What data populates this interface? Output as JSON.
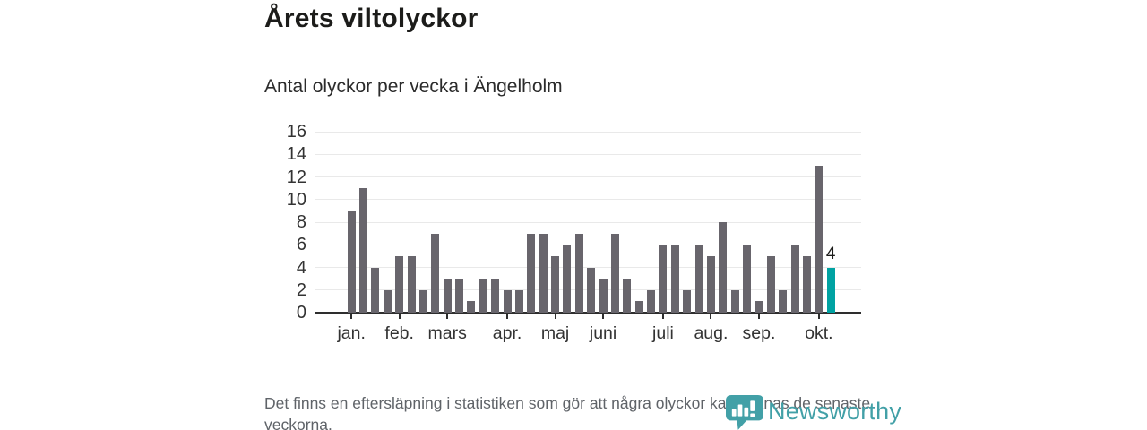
{
  "header": {
    "title": "Årets viltolyckor",
    "subtitle": "Antal olyckor per vecka i Ängelholm"
  },
  "chart_data": {
    "type": "bar",
    "title": "Årets viltolyckor",
    "subtitle": "Antal olyckor per vecka i Ängelholm",
    "x_unit": "week",
    "values": [
      9,
      11,
      4,
      2,
      5,
      5,
      2,
      7,
      3,
      3,
      1,
      3,
      3,
      2,
      2,
      7,
      7,
      5,
      6,
      7,
      4,
      3,
      7,
      3,
      1,
      2,
      6,
      6,
      2,
      6,
      5,
      8,
      2,
      6,
      1,
      5,
      2,
      6,
      5,
      13,
      4
    ],
    "highlight_index": 40,
    "highlight_label": "4",
    "ylim": [
      0,
      16
    ],
    "yticks": [
      0,
      2,
      4,
      6,
      8,
      10,
      12,
      14,
      16
    ],
    "xticks": [
      {
        "label": "jan.",
        "index": 0
      },
      {
        "label": "feb.",
        "index": 4
      },
      {
        "label": "mars",
        "index": 8
      },
      {
        "label": "apr.",
        "index": 13
      },
      {
        "label": "maj",
        "index": 17
      },
      {
        "label": "juni",
        "index": 21
      },
      {
        "label": "juli",
        "index": 26
      },
      {
        "label": "aug.",
        "index": 30
      },
      {
        "label": "sep.",
        "index": 34
      },
      {
        "label": "okt.",
        "index": 39
      }
    ],
    "grid": true,
    "legend_position": "none",
    "colors": {
      "bar": "#68656c",
      "highlight": "#00a2a2",
      "axis": "#2e2e2e",
      "gridline": "#e9e9e9"
    }
  },
  "footer": {
    "note": "Det finns en eftersläpning i statistiken som gör att några olyckor kan saknas de senaste veckorna.",
    "brand": "Newsworthy",
    "brand_color": "#42a0a7"
  }
}
